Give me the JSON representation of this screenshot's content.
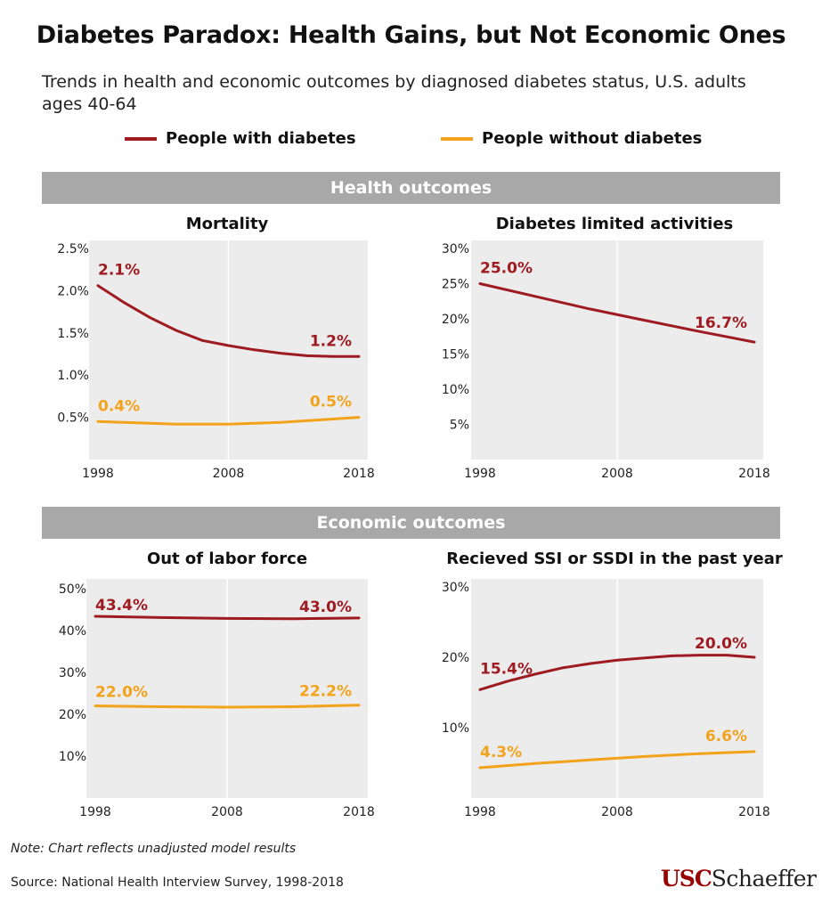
{
  "title": "Diabetes Paradox: Health Gains, but Not Economic Ones",
  "subtitle": "Trends in health and economic outcomes by diagnosed diabetes status, U.S. adults ages 40-64",
  "legend": {
    "with_label": "People with diabetes",
    "without_label": "People without diabetes"
  },
  "colors": {
    "with": "#9e1b21",
    "without": "#f2a31b",
    "plot_bg": "#ececec",
    "band": "#a8a8a8"
  },
  "sections": {
    "health": "Health outcomes",
    "economic": "Economic outcomes"
  },
  "panels": {
    "mortality": {
      "title": "Mortality"
    },
    "limited": {
      "title": "Diabetes limited activities"
    },
    "labor": {
      "title": "Out of labor force"
    },
    "ssi": {
      "title": "Recieved SSI or SSDI in the past year"
    }
  },
  "chart_data": [
    {
      "id": "mortality",
      "type": "line",
      "title": "Mortality",
      "x_ticks": [
        "1998",
        "2008",
        "2018"
      ],
      "xlim": [
        1998,
        2018
      ],
      "y_ticks": [
        "2.5%",
        "2.0%",
        "1.5%",
        "1.0%",
        "0.5%"
      ],
      "ylim": [
        0,
        2.5
      ],
      "y_tick_values": [
        2.5,
        2.0,
        1.5,
        1.0,
        0.5
      ],
      "grid": "vertical line at 2008",
      "series": [
        {
          "name": "People with diabetes",
          "color": "#9e1b21",
          "x": [
            1998,
            2000,
            2002,
            2004,
            2006,
            2008,
            2010,
            2012,
            2014,
            2016,
            2018
          ],
          "y": [
            2.06,
            1.86,
            1.68,
            1.53,
            1.41,
            1.35,
            1.3,
            1.26,
            1.23,
            1.22,
            1.22
          ],
          "start_label": "2.1%",
          "end_label": "1.2%"
        },
        {
          "name": "People without diabetes",
          "color": "#f2a31b",
          "x": [
            1998,
            2000,
            2002,
            2004,
            2006,
            2008,
            2010,
            2012,
            2014,
            2016,
            2018
          ],
          "y": [
            0.45,
            0.44,
            0.43,
            0.42,
            0.42,
            0.42,
            0.43,
            0.44,
            0.46,
            0.48,
            0.5
          ],
          "start_label": "0.4%",
          "end_label": "0.5%"
        }
      ]
    },
    {
      "id": "limited",
      "type": "line",
      "title": "Diabetes limited activities",
      "x_ticks": [
        "1998",
        "2008",
        "2018"
      ],
      "xlim": [
        1998,
        2018
      ],
      "y_ticks": [
        "30%",
        "25%",
        "20%",
        "15%",
        "10%",
        "5%"
      ],
      "ylim": [
        0,
        30
      ],
      "y_tick_values": [
        30,
        25,
        20,
        15,
        10,
        5
      ],
      "grid": "vertical line at 2008",
      "series": [
        {
          "name": "People with diabetes",
          "color": "#9e1b21",
          "x": [
            1998,
            2002,
            2006,
            2010,
            2014,
            2018
          ],
          "y": [
            25.0,
            23.2,
            21.4,
            19.8,
            18.2,
            16.7
          ],
          "start_label": "25.0%",
          "end_label": "16.7%"
        }
      ]
    },
    {
      "id": "labor",
      "type": "line",
      "title": "Out of labor force",
      "x_ticks": [
        "1998",
        "2008",
        "2018"
      ],
      "xlim": [
        1998,
        2018
      ],
      "y_ticks": [
        "50%",
        "40%",
        "30%",
        "20%",
        "10%"
      ],
      "ylim": [
        0,
        50
      ],
      "y_tick_values": [
        50,
        40,
        30,
        20,
        10
      ],
      "grid": "vertical line at 2008",
      "series": [
        {
          "name": "People with diabetes",
          "color": "#9e1b21",
          "x": [
            1998,
            2003,
            2008,
            2013,
            2018
          ],
          "y": [
            43.4,
            43.1,
            42.9,
            42.8,
            43.0
          ],
          "start_label": "43.4%",
          "end_label": "43.0%"
        },
        {
          "name": "People without diabetes",
          "color": "#f2a31b",
          "x": [
            1998,
            2003,
            2008,
            2013,
            2018
          ],
          "y": [
            22.0,
            21.8,
            21.7,
            21.8,
            22.2
          ],
          "start_label": "22.0%",
          "end_label": "22.2%"
        }
      ]
    },
    {
      "id": "ssi",
      "type": "line",
      "title": "Recieved SSI or SSDI in the past year",
      "x_ticks": [
        "1998",
        "2008",
        "2018"
      ],
      "xlim": [
        1998,
        2018
      ],
      "y_ticks": [
        "30%",
        "20%",
        "10%"
      ],
      "ylim": [
        0,
        30
      ],
      "y_tick_values": [
        30,
        20,
        10
      ],
      "grid": "vertical line at 2008",
      "series": [
        {
          "name": "People with diabetes",
          "color": "#9e1b21",
          "x": [
            1998,
            2000,
            2002,
            2004,
            2006,
            2008,
            2010,
            2012,
            2014,
            2016,
            2018
          ],
          "y": [
            15.4,
            16.6,
            17.6,
            18.5,
            19.1,
            19.6,
            19.9,
            20.2,
            20.3,
            20.3,
            20.0
          ],
          "start_label": "15.4%",
          "end_label": "20.0%"
        },
        {
          "name": "People without diabetes",
          "color": "#f2a31b",
          "x": [
            1998,
            2002,
            2006,
            2010,
            2014,
            2018
          ],
          "y": [
            4.3,
            4.9,
            5.4,
            5.9,
            6.3,
            6.6
          ],
          "start_label": "4.3%",
          "end_label": "6.6%"
        }
      ]
    }
  ],
  "note": "Note: Chart reflects unadjusted model results",
  "source": "Source: National Health Interview Survey, 1998-2018",
  "logo": {
    "part1": "USC",
    "part2": "Schaeffer"
  }
}
